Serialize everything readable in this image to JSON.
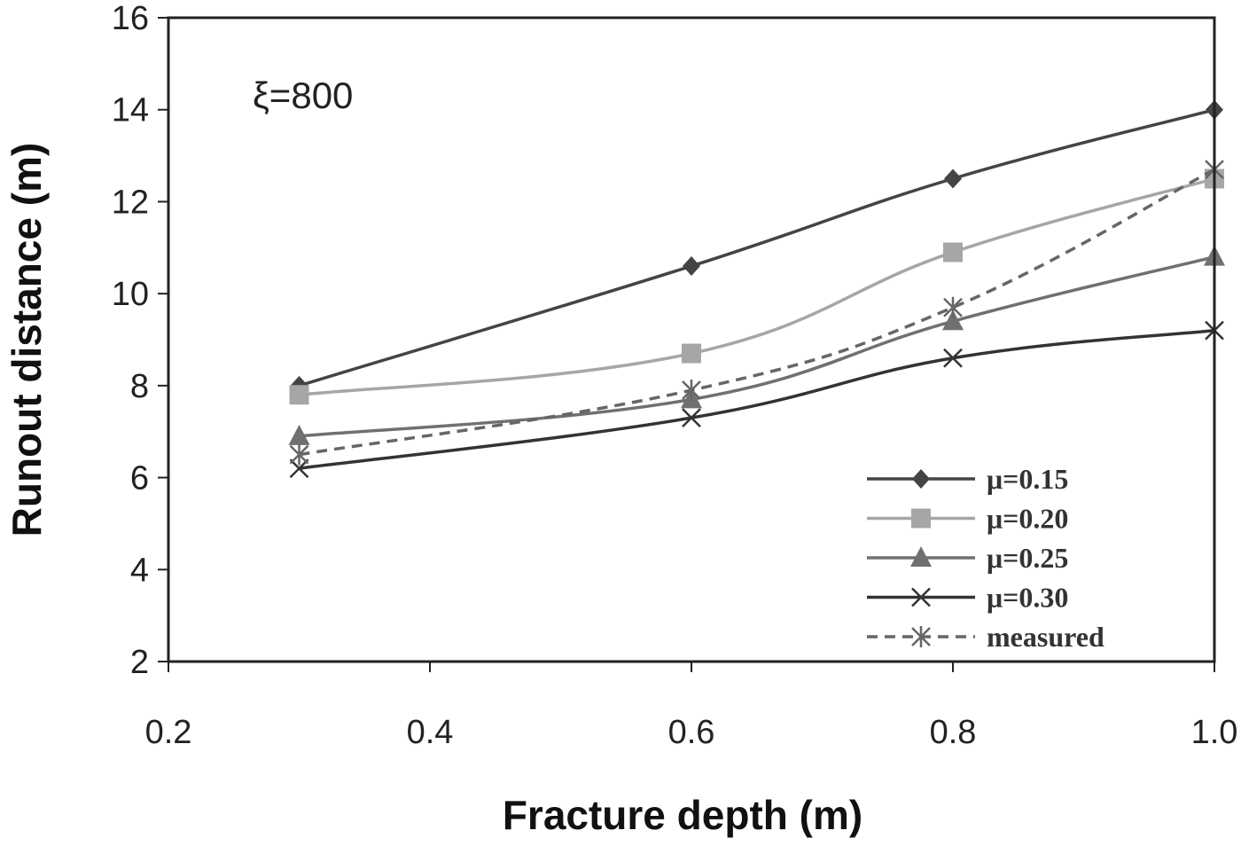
{
  "chart_data": {
    "type": "line",
    "xlabel": "Fracture depth (m)",
    "ylabel": "Runout distance (m)",
    "annotation": "ξ=800",
    "xlim": [
      0.2,
      1.0
    ],
    "ylim": [
      2,
      16
    ],
    "x_ticks": [
      "0.2",
      "0.4",
      "0.6",
      "0.8",
      "1.0"
    ],
    "y_ticks": [
      "2",
      "4",
      "6",
      "8",
      "10",
      "12",
      "14",
      "16"
    ],
    "x": [
      0.3,
      0.6,
      0.8,
      1.0
    ],
    "grid": false,
    "legend_position": "bottom-right",
    "series": [
      {
        "name": "μ=0.15",
        "values": [
          8.0,
          10.6,
          12.5,
          14.0
        ],
        "color": "#444444",
        "marker": "diamond",
        "dash": "solid"
      },
      {
        "name": "μ=0.20",
        "values": [
          7.8,
          8.7,
          10.9,
          12.5
        ],
        "color": "#a6a6a6",
        "marker": "square",
        "dash": "solid"
      },
      {
        "name": "μ=0.25",
        "values": [
          6.9,
          7.7,
          9.4,
          10.8
        ],
        "color": "#707070",
        "marker": "triangle",
        "dash": "solid"
      },
      {
        "name": "μ=0.30",
        "values": [
          6.2,
          7.3,
          8.6,
          9.2
        ],
        "color": "#333333",
        "marker": "x",
        "dash": "solid"
      },
      {
        "name": "measured",
        "values": [
          6.5,
          7.9,
          9.7,
          12.7
        ],
        "color": "#666666",
        "marker": "star",
        "dash": "dashed"
      }
    ]
  }
}
